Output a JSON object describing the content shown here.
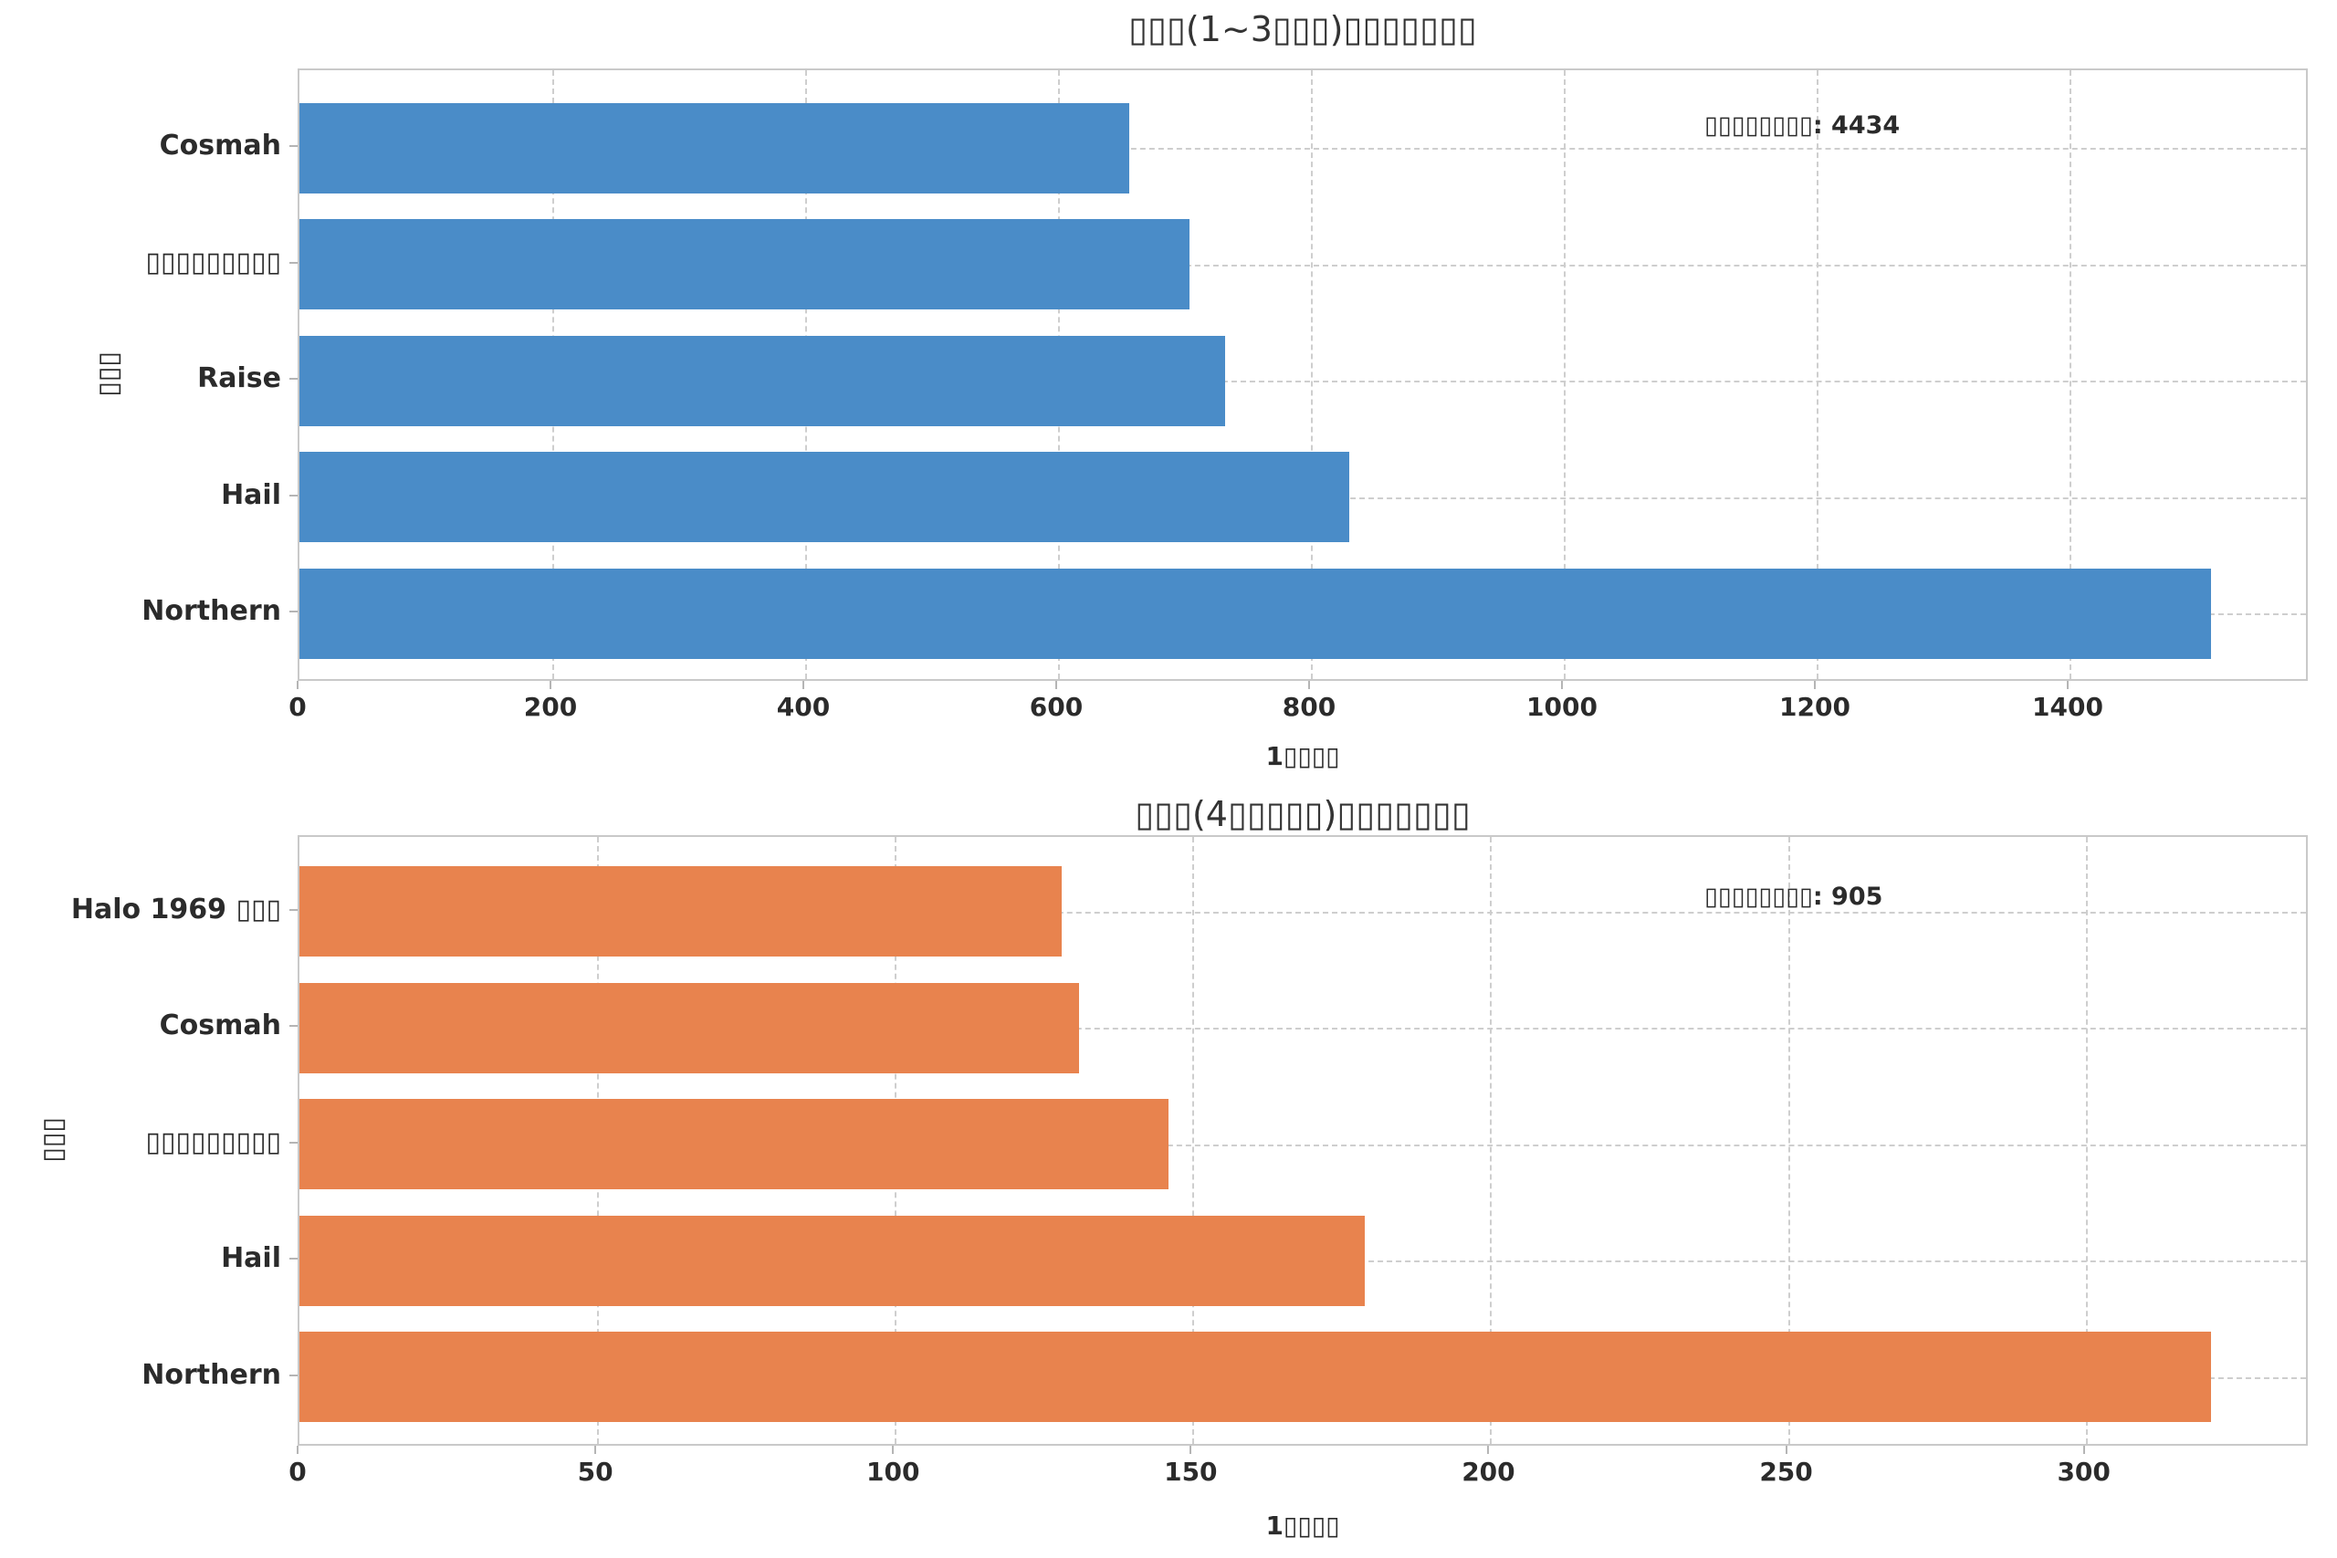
{
  "figure": {
    "background": "#ffffff",
    "text_color": "#2b2b2b",
    "grid_color": "#cecece",
    "spine_color": "#c9c9c9"
  },
  "chart_data": [
    {
      "type": "bar",
      "orientation": "horizontal",
      "title": "▯▯▯(1~3▯▯▯)▯▯▯▯▯▯▯",
      "xlabel": "1▯▯▯▯",
      "ylabel": "▯▯▯",
      "annotation": "▯▯▯▯▯▯▯▯: 4434",
      "annotation_total": 4434,
      "categories": [
        "Cosmah",
        "▯▯▯▯▯▯▯▯▯",
        "Raise",
        "Hail",
        "Northern"
      ],
      "values": [
        656,
        704,
        732,
        830,
        1512
      ],
      "xlim": [
        0,
        1587
      ],
      "xticks": [
        0,
        200,
        400,
        600,
        800,
        1000,
        1200,
        1400
      ],
      "bar_color": "#4a8cc8",
      "grid": true,
      "grid_style": "dashed",
      "legend": "none"
    },
    {
      "type": "bar",
      "orientation": "horizontal",
      "title": "▯▯▯(4▯▯▯▯▯)▯▯▯▯▯▯▯",
      "xlabel": "1▯▯▯▯",
      "ylabel": "▯▯▯",
      "annotation": "▯▯▯▯▯▯▯▯: 905",
      "annotation_total": 905,
      "categories": [
        "Halo 1969 ▯▯▯",
        "Cosmah",
        "▯▯▯▯▯▯▯▯▯",
        "Hail",
        "Northern"
      ],
      "values": [
        128,
        131,
        146,
        179,
        321
      ],
      "xlim": [
        0,
        337
      ],
      "xticks": [
        0,
        50,
        100,
        150,
        200,
        250,
        300
      ],
      "bar_color": "#e8834e",
      "grid": true,
      "grid_style": "dashed",
      "legend": "none"
    }
  ]
}
